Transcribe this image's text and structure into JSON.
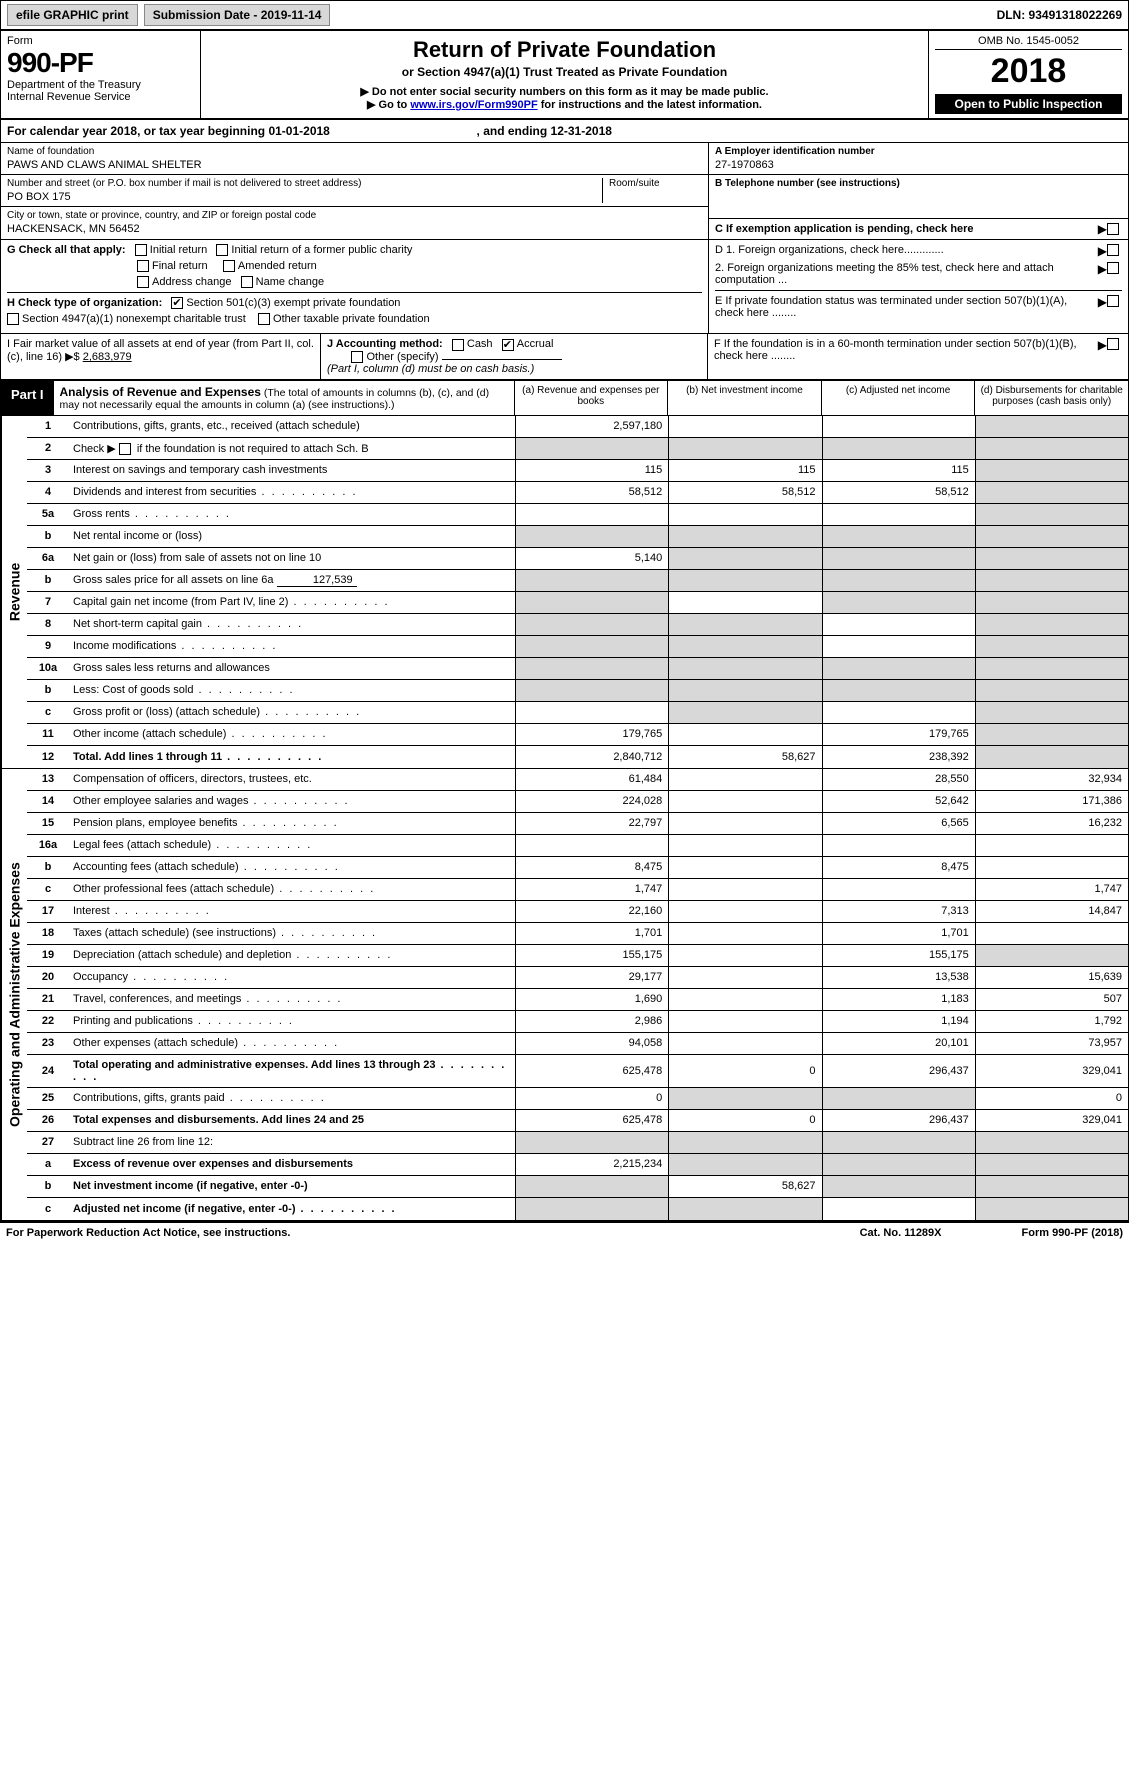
{
  "toolbar": {
    "efile": "efile GRAPHIC print",
    "submission": "Submission Date - 2019-11-14",
    "dln": "DLN: 93491318022269"
  },
  "header": {
    "form_label": "Form",
    "form_number": "990-PF",
    "dept": "Department of the Treasury",
    "irs": "Internal Revenue Service",
    "title": "Return of Private Foundation",
    "subtitle": "or Section 4947(a)(1) Trust Treated as Private Foundation",
    "warn1": "▶ Do not enter social security numbers on this form as it may be made public.",
    "warn2_pre": "▶ Go to ",
    "warn2_link": "www.irs.gov/Form990PF",
    "warn2_post": " for instructions and the latest information.",
    "omb": "OMB No. 1545-0052",
    "year": "2018",
    "open_public": "Open to Public Inspection"
  },
  "calendar": {
    "text_a": "For calendar year 2018, or tax year beginning ",
    "begin": "01-01-2018",
    "text_b": " , and ending ",
    "end": "12-31-2018"
  },
  "identity": {
    "name_label": "Name of foundation",
    "name": "PAWS AND CLAWS ANIMAL SHELTER",
    "addr_label": "Number and street (or P.O. box number if mail is not delivered to street address)",
    "room_label": "Room/suite",
    "addr": "PO BOX 175",
    "city_label": "City or town, state or province, country, and ZIP or foreign postal code",
    "city": "HACKENSACK, MN  56452",
    "ein_label": "A Employer identification number",
    "ein": "27-1970863",
    "phone_label": "B Telephone number (see instructions)",
    "c_label": "C If exemption application is pending, check here"
  },
  "checks": {
    "g_label": "G Check all that apply:",
    "g_opts": [
      "Initial return",
      "Initial return of a former public charity",
      "Final return",
      "Amended return",
      "Address change",
      "Name change"
    ],
    "h_label": "H Check type of organization:",
    "h_opts": [
      "Section 501(c)(3) exempt private foundation",
      "Section 4947(a)(1) nonexempt charitable trust",
      "Other taxable private foundation"
    ],
    "d1": "D 1. Foreign organizations, check here.............",
    "d2": "2. Foreign organizations meeting the 85% test, check here and attach computation ...",
    "e": "E  If private foundation status was terminated under section 507(b)(1)(A), check here ........",
    "f": "F  If the foundation is in a 60-month termination under section 507(b)(1)(B), check here ........"
  },
  "fmv": {
    "i_label": "I Fair market value of all assets at end of year (from Part II, col. (c), line 16) ▶$ ",
    "i_value": "2,683,979",
    "j_label": "J Accounting method:",
    "j_cash": "Cash",
    "j_accrual": "Accrual",
    "j_other": "Other (specify)",
    "j_note": "(Part I, column (d) must be on cash basis.)"
  },
  "part1": {
    "tag": "Part I",
    "title": "Analysis of Revenue and Expenses",
    "note": " (The total of amounts in columns (b), (c), and (d) may not necessarily equal the amounts in column (a) (see instructions).)",
    "col_a": "(a) Revenue and expenses per books",
    "col_b": "(b) Net investment income",
    "col_c": "(c) Adjusted net income",
    "col_d": "(d) Disbursements for charitable purposes (cash basis only)"
  },
  "side": {
    "revenue": "Revenue",
    "expenses": "Operating and Administrative Expenses"
  },
  "lines": {
    "l1": {
      "n": "1",
      "label": "Contributions, gifts, grants, etc., received (attach schedule)",
      "a": "2,597,180"
    },
    "l2": {
      "n": "2",
      "label_pre": "Check ▶ ",
      "label_post": " if the foundation is not required to attach Sch. B"
    },
    "l3": {
      "n": "3",
      "label": "Interest on savings and temporary cash investments",
      "a": "115",
      "b": "115",
      "c": "115"
    },
    "l4": {
      "n": "4",
      "label": "Dividends and interest from securities",
      "a": "58,512",
      "b": "58,512",
      "c": "58,512"
    },
    "l5a": {
      "n": "5a",
      "label": "Gross rents"
    },
    "l5b": {
      "n": "b",
      "label": "Net rental income or (loss)"
    },
    "l6a": {
      "n": "6a",
      "label": "Net gain or (loss) from sale of assets not on line 10",
      "a": "5,140"
    },
    "l6b": {
      "n": "b",
      "label": "Gross sales price for all assets on line 6a",
      "inline": "127,539"
    },
    "l7": {
      "n": "7",
      "label": "Capital gain net income (from Part IV, line 2)"
    },
    "l8": {
      "n": "8",
      "label": "Net short-term capital gain"
    },
    "l9": {
      "n": "9",
      "label": "Income modifications"
    },
    "l10a": {
      "n": "10a",
      "label": "Gross sales less returns and allowances"
    },
    "l10b": {
      "n": "b",
      "label": "Less: Cost of goods sold"
    },
    "l10c": {
      "n": "c",
      "label": "Gross profit or (loss) (attach schedule)"
    },
    "l11": {
      "n": "11",
      "label": "Other income (attach schedule)",
      "a": "179,765",
      "c": "179,765"
    },
    "l12": {
      "n": "12",
      "label": "Total. Add lines 1 through 11",
      "bold": true,
      "a": "2,840,712",
      "b": "58,627",
      "c": "238,392"
    },
    "l13": {
      "n": "13",
      "label": "Compensation of officers, directors, trustees, etc.",
      "a": "61,484",
      "c": "28,550",
      "d": "32,934"
    },
    "l14": {
      "n": "14",
      "label": "Other employee salaries and wages",
      "a": "224,028",
      "c": "52,642",
      "d": "171,386"
    },
    "l15": {
      "n": "15",
      "label": "Pension plans, employee benefits",
      "a": "22,797",
      "c": "6,565",
      "d": "16,232"
    },
    "l16a": {
      "n": "16a",
      "label": "Legal fees (attach schedule)"
    },
    "l16b": {
      "n": "b",
      "label": "Accounting fees (attach schedule)",
      "a": "8,475",
      "c": "8,475"
    },
    "l16c": {
      "n": "c",
      "label": "Other professional fees (attach schedule)",
      "a": "1,747",
      "d": "1,747"
    },
    "l17": {
      "n": "17",
      "label": "Interest",
      "a": "22,160",
      "c": "7,313",
      "d": "14,847"
    },
    "l18": {
      "n": "18",
      "label": "Taxes (attach schedule) (see instructions)",
      "a": "1,701",
      "c": "1,701"
    },
    "l19": {
      "n": "19",
      "label": "Depreciation (attach schedule) and depletion",
      "a": "155,175",
      "c": "155,175"
    },
    "l20": {
      "n": "20",
      "label": "Occupancy",
      "a": "29,177",
      "c": "13,538",
      "d": "15,639"
    },
    "l21": {
      "n": "21",
      "label": "Travel, conferences, and meetings",
      "a": "1,690",
      "c": "1,183",
      "d": "507"
    },
    "l22": {
      "n": "22",
      "label": "Printing and publications",
      "a": "2,986",
      "c": "1,194",
      "d": "1,792"
    },
    "l23": {
      "n": "23",
      "label": "Other expenses (attach schedule)",
      "a": "94,058",
      "c": "20,101",
      "d": "73,957"
    },
    "l24": {
      "n": "24",
      "label": "Total operating and administrative expenses. Add lines 13 through 23",
      "bold": true,
      "a": "625,478",
      "b": "0",
      "c": "296,437",
      "d": "329,041"
    },
    "l25": {
      "n": "25",
      "label": "Contributions, gifts, grants paid",
      "a": "0",
      "d": "0"
    },
    "l26": {
      "n": "26",
      "label": "Total expenses and disbursements. Add lines 24 and 25",
      "bold": true,
      "a": "625,478",
      "b": "0",
      "c": "296,437",
      "d": "329,041"
    },
    "l27": {
      "n": "27",
      "label": "Subtract line 26 from line 12:"
    },
    "l27a": {
      "n": "a",
      "label": "Excess of revenue over expenses and disbursements",
      "bold": true,
      "a": "2,215,234"
    },
    "l27b": {
      "n": "b",
      "label": "Net investment income (if negative, enter -0-)",
      "bold": true,
      "b": "58,627"
    },
    "l27c": {
      "n": "c",
      "label": "Adjusted net income (if negative, enter -0-)",
      "bold": true
    }
  },
  "footer": {
    "left": "For Paperwork Reduction Act Notice, see instructions.",
    "mid": "Cat. No. 11289X",
    "right": "Form 990-PF (2018)"
  }
}
